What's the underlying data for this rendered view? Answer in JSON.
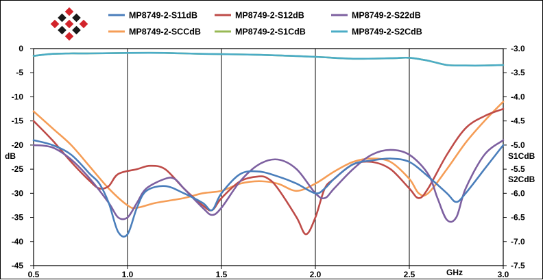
{
  "chart_data": {
    "type": "line",
    "xlabel": "GHz",
    "ylabel_left": "dB",
    "ylabel_right_lines": [
      "S1CdB",
      "S2CdB"
    ],
    "xlim": [
      0.5,
      3.0
    ],
    "ylim_left": [
      -45,
      0
    ],
    "ylim_right": [
      -7.5,
      -3.0
    ],
    "x_ticks": [
      "0.5",
      "1.0",
      "1.5",
      "2.0",
      "2.5",
      "3.0"
    ],
    "y_ticks_left": [
      "0",
      "-5",
      "-10",
      "-15",
      "-20",
      "-25",
      "-30",
      "-35",
      "-40",
      "-45"
    ],
    "y_ticks_right": [
      "-3.0",
      "-3.5",
      "-4.0",
      "-4.5",
      "-5.0",
      "-5.5",
      "-6.0",
      "-6.5",
      "-7.0",
      "-7.5"
    ],
    "grid": "vertical",
    "legend_position": "top",
    "series": [
      {
        "name": "MP8749-2-S11dB",
        "color": "#4a7ebb",
        "axis": "left",
        "points": [
          [
            0.5,
            -19
          ],
          [
            0.6,
            -20
          ],
          [
            0.7,
            -22
          ],
          [
            0.8,
            -26
          ],
          [
            0.85,
            -28
          ],
          [
            0.9,
            -32
          ],
          [
            0.95,
            -38
          ],
          [
            1.0,
            -38.5
          ],
          [
            1.05,
            -33
          ],
          [
            1.1,
            -29.5
          ],
          [
            1.2,
            -28.5
          ],
          [
            1.3,
            -30
          ],
          [
            1.4,
            -32
          ],
          [
            1.45,
            -33.5
          ],
          [
            1.5,
            -30
          ],
          [
            1.6,
            -26
          ],
          [
            1.7,
            -25.5
          ],
          [
            1.8,
            -26.5
          ],
          [
            1.9,
            -28
          ],
          [
            2.0,
            -30
          ],
          [
            2.05,
            -29
          ],
          [
            2.1,
            -27
          ],
          [
            2.2,
            -24
          ],
          [
            2.3,
            -23.2
          ],
          [
            2.4,
            -22.8
          ],
          [
            2.5,
            -23.5
          ],
          [
            2.6,
            -26.5
          ],
          [
            2.7,
            -30
          ],
          [
            2.75,
            -31.8
          ],
          [
            2.8,
            -30
          ],
          [
            2.9,
            -25
          ],
          [
            3.0,
            -20
          ]
        ]
      },
      {
        "name": "MP8749-2-S12dB",
        "color": "#be4b48",
        "axis": "left",
        "points": [
          [
            0.5,
            -15
          ],
          [
            0.6,
            -19
          ],
          [
            0.7,
            -23.5
          ],
          [
            0.8,
            -27.5
          ],
          [
            0.85,
            -29
          ],
          [
            0.9,
            -28.5
          ],
          [
            0.95,
            -26
          ],
          [
            1.05,
            -25
          ],
          [
            1.12,
            -24.3
          ],
          [
            1.2,
            -25
          ],
          [
            1.3,
            -29
          ],
          [
            1.4,
            -32.5
          ],
          [
            1.45,
            -33.5
          ],
          [
            1.5,
            -31
          ],
          [
            1.6,
            -27.5
          ],
          [
            1.7,
            -26.5
          ],
          [
            1.75,
            -27
          ],
          [
            1.8,
            -29
          ],
          [
            1.9,
            -35
          ],
          [
            1.95,
            -38.5
          ],
          [
            2.0,
            -35
          ],
          [
            2.05,
            -29
          ],
          [
            2.1,
            -27
          ],
          [
            2.2,
            -24
          ],
          [
            2.3,
            -23.5
          ],
          [
            2.4,
            -25
          ],
          [
            2.5,
            -29
          ],
          [
            2.55,
            -31
          ],
          [
            2.6,
            -29
          ],
          [
            2.7,
            -22
          ],
          [
            2.8,
            -16.5
          ],
          [
            2.9,
            -14
          ],
          [
            3.0,
            -12.5
          ]
        ]
      },
      {
        "name": "MP8749-2-S22dB",
        "color": "#7d60a0",
        "axis": "left",
        "points": [
          [
            0.5,
            -20
          ],
          [
            0.6,
            -20.5
          ],
          [
            0.7,
            -23
          ],
          [
            0.8,
            -27
          ],
          [
            0.9,
            -32
          ],
          [
            0.95,
            -35
          ],
          [
            1.0,
            -35
          ],
          [
            1.05,
            -32
          ],
          [
            1.1,
            -29
          ],
          [
            1.2,
            -27
          ],
          [
            1.25,
            -27
          ],
          [
            1.3,
            -29
          ],
          [
            1.4,
            -33
          ],
          [
            1.45,
            -34.5
          ],
          [
            1.5,
            -33
          ],
          [
            1.6,
            -27.5
          ],
          [
            1.7,
            -24
          ],
          [
            1.8,
            -23
          ],
          [
            1.9,
            -25
          ],
          [
            2.0,
            -30
          ],
          [
            2.05,
            -31
          ],
          [
            2.1,
            -29
          ],
          [
            2.2,
            -25
          ],
          [
            2.3,
            -22
          ],
          [
            2.4,
            -21
          ],
          [
            2.5,
            -22
          ],
          [
            2.6,
            -26
          ],
          [
            2.65,
            -31
          ],
          [
            2.7,
            -35.5
          ],
          [
            2.75,
            -35
          ],
          [
            2.8,
            -29
          ],
          [
            2.9,
            -22
          ],
          [
            3.0,
            -19
          ]
        ]
      },
      {
        "name": "MP8749-2-SCCdB",
        "color": "#f59d56",
        "axis": "left",
        "points": [
          [
            0.5,
            -13
          ],
          [
            0.6,
            -16.5
          ],
          [
            0.7,
            -20
          ],
          [
            0.8,
            -24.5
          ],
          [
            0.9,
            -29
          ],
          [
            1.0,
            -32.5
          ],
          [
            1.05,
            -33
          ],
          [
            1.15,
            -32
          ],
          [
            1.3,
            -31
          ],
          [
            1.4,
            -30
          ],
          [
            1.5,
            -29.5
          ],
          [
            1.6,
            -28
          ],
          [
            1.7,
            -27.5
          ],
          [
            1.8,
            -28
          ],
          [
            1.9,
            -29.5
          ],
          [
            2.0,
            -28
          ],
          [
            2.1,
            -25.5
          ],
          [
            2.2,
            -23.5
          ],
          [
            2.3,
            -22.8
          ],
          [
            2.4,
            -23.5
          ],
          [
            2.5,
            -27
          ],
          [
            2.55,
            -30
          ],
          [
            2.6,
            -30
          ],
          [
            2.7,
            -25
          ],
          [
            2.8,
            -19.5
          ],
          [
            2.9,
            -15
          ],
          [
            3.0,
            -11
          ]
        ]
      },
      {
        "name": "MP8749-2-S1CdB",
        "color": "#98b954",
        "axis": "right",
        "points": [
          [
            0.5,
            -3.15
          ],
          [
            0.6,
            -3.11
          ],
          [
            0.7,
            -3.1
          ],
          [
            0.8,
            -3.1
          ],
          [
            1.0,
            -3.09
          ],
          [
            1.2,
            -3.09
          ],
          [
            1.4,
            -3.11
          ],
          [
            1.6,
            -3.12
          ],
          [
            1.8,
            -3.14
          ],
          [
            2.0,
            -3.17
          ],
          [
            2.2,
            -3.21
          ],
          [
            2.4,
            -3.2
          ],
          [
            2.5,
            -3.19
          ],
          [
            2.6,
            -3.25
          ],
          [
            2.7,
            -3.34
          ],
          [
            2.8,
            -3.35
          ],
          [
            2.9,
            -3.35
          ],
          [
            3.0,
            -3.34
          ]
        ]
      },
      {
        "name": "MP8749-2-S2CdB",
        "color": "#4bacc6",
        "axis": "right",
        "points": [
          [
            0.5,
            -3.15
          ],
          [
            0.6,
            -3.11
          ],
          [
            0.7,
            -3.1
          ],
          [
            0.8,
            -3.1
          ],
          [
            1.0,
            -3.09
          ],
          [
            1.2,
            -3.09
          ],
          [
            1.4,
            -3.11
          ],
          [
            1.6,
            -3.12
          ],
          [
            1.8,
            -3.14
          ],
          [
            2.0,
            -3.17
          ],
          [
            2.2,
            -3.21
          ],
          [
            2.4,
            -3.2
          ],
          [
            2.5,
            -3.19
          ],
          [
            2.6,
            -3.25
          ],
          [
            2.7,
            -3.34
          ],
          [
            2.8,
            -3.35
          ],
          [
            2.9,
            -3.35
          ],
          [
            3.0,
            -3.34
          ]
        ]
      }
    ]
  },
  "legend": {
    "rows": [
      [
        "MP8749-2-S11dB",
        "MP8749-2-S12dB",
        "MP8749-2-S22dB"
      ],
      [
        "MP8749-2-SCCdB",
        "MP8749-2-S1CdB",
        "MP8749-2-S2CdB"
      ]
    ]
  },
  "logo": {
    "name": "diamond-logo",
    "colors": [
      "#d2232a",
      "#1a1a1a"
    ]
  }
}
